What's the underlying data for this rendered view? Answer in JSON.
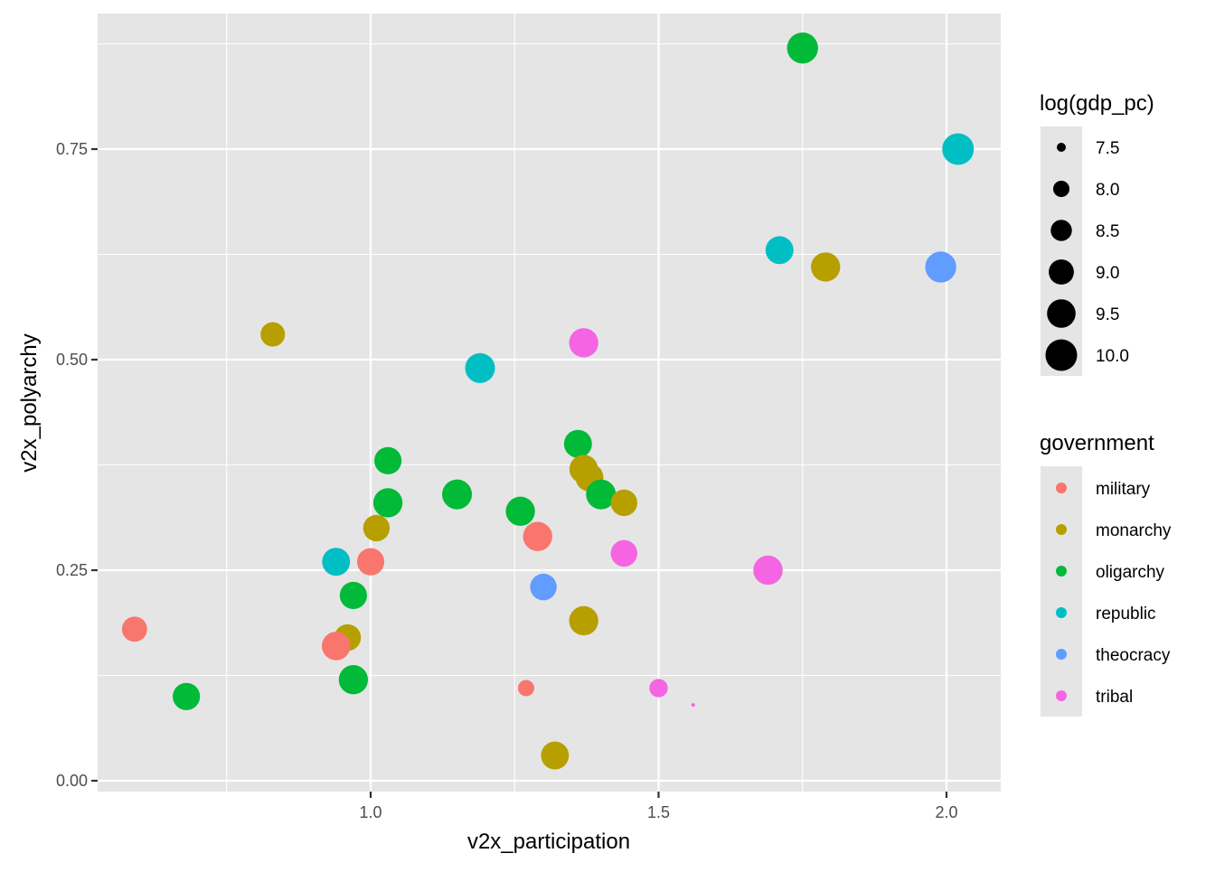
{
  "chart_data": {
    "type": "scatter",
    "title": "",
    "xlabel": "v2x_participation",
    "ylabel": "v2x_polyarchy",
    "xlim": [
      0.5,
      2.1
    ],
    "ylim": [
      -0.02,
      0.91
    ],
    "x_ticks": [
      1.0,
      1.5,
      2.0
    ],
    "x_tick_labels": [
      "1.0",
      "1.5",
      "2.0"
    ],
    "x_minor_ticks": [
      0.75,
      1.25,
      1.75
    ],
    "y_ticks": [
      0.0,
      0.25,
      0.5,
      0.75
    ],
    "y_tick_labels": [
      "0.00",
      "0.25",
      "0.50",
      "0.75"
    ],
    "y_minor_ticks": [
      0.125,
      0.375,
      0.625,
      0.875
    ],
    "grid": true,
    "panel_background": "#e5e5e5",
    "legend_position": "right",
    "size_legend": {
      "title": "log(gdp_pc)",
      "entries": [
        {
          "label": "7.5",
          "value": 7.5
        },
        {
          "label": "8.0",
          "value": 8.0
        },
        {
          "label": "8.5",
          "value": 8.5
        },
        {
          "label": "9.0",
          "value": 9.0
        },
        {
          "label": "9.5",
          "value": 9.5
        },
        {
          "label": "10.0",
          "value": 10.0
        }
      ]
    },
    "color_legend": {
      "title": "government",
      "entries": [
        {
          "label": "military",
          "color": "#F8766D"
        },
        {
          "label": "monarchy",
          "color": "#B79F00"
        },
        {
          "label": "oligarchy",
          "color": "#00BA38"
        },
        {
          "label": "republic",
          "color": "#00BFC4"
        },
        {
          "label": "theocracy",
          "color": "#619CFF"
        },
        {
          "label": "tribal",
          "color": "#F564E3"
        }
      ]
    },
    "colors": {
      "military": "#F8766D",
      "monarchy": "#B79F00",
      "oligarchy": "#00BA38",
      "republic": "#00BFC4",
      "theocracy": "#619CFF",
      "tribal": "#F564E3"
    },
    "points": [
      {
        "government": "military",
        "x": 0.59,
        "y": 0.18,
        "size": 9.0
      },
      {
        "government": "oligarchy",
        "x": 0.68,
        "y": 0.1,
        "size": 9.3
      },
      {
        "government": "monarchy",
        "x": 0.83,
        "y": 0.53,
        "size": 8.9
      },
      {
        "government": "republic",
        "x": 0.94,
        "y": 0.26,
        "size": 9.4
      },
      {
        "government": "monarchy",
        "x": 0.96,
        "y": 0.17,
        "size": 9.2
      },
      {
        "government": "military",
        "x": 0.94,
        "y": 0.16,
        "size": 9.5
      },
      {
        "government": "oligarchy",
        "x": 0.97,
        "y": 0.22,
        "size": 9.3
      },
      {
        "government": "oligarchy",
        "x": 0.97,
        "y": 0.12,
        "size": 9.6
      },
      {
        "government": "military",
        "x": 1.0,
        "y": 0.26,
        "size": 9.3
      },
      {
        "government": "monarchy",
        "x": 1.01,
        "y": 0.3,
        "size": 9.2
      },
      {
        "government": "oligarchy",
        "x": 1.03,
        "y": 0.38,
        "size": 9.3
      },
      {
        "government": "oligarchy",
        "x": 1.03,
        "y": 0.33,
        "size": 9.6
      },
      {
        "government": "oligarchy",
        "x": 1.15,
        "y": 0.34,
        "size": 9.7
      },
      {
        "government": "republic",
        "x": 1.19,
        "y": 0.49,
        "size": 9.7
      },
      {
        "government": "oligarchy",
        "x": 1.26,
        "y": 0.32,
        "size": 9.6
      },
      {
        "government": "military",
        "x": 1.27,
        "y": 0.11,
        "size": 8.0
      },
      {
        "government": "military",
        "x": 1.29,
        "y": 0.29,
        "size": 9.6
      },
      {
        "government": "theocracy",
        "x": 1.3,
        "y": 0.23,
        "size": 9.2
      },
      {
        "government": "monarchy",
        "x": 1.32,
        "y": 0.03,
        "size": 9.4
      },
      {
        "government": "oligarchy",
        "x": 1.36,
        "y": 0.4,
        "size": 9.4
      },
      {
        "government": "monarchy",
        "x": 1.37,
        "y": 0.37,
        "size": 9.5
      },
      {
        "government": "monarchy",
        "x": 1.38,
        "y": 0.36,
        "size": 9.4
      },
      {
        "government": "oligarchy",
        "x": 1.4,
        "y": 0.34,
        "size": 9.7
      },
      {
        "government": "monarchy",
        "x": 1.37,
        "y": 0.19,
        "size": 9.6
      },
      {
        "government": "tribal",
        "x": 1.37,
        "y": 0.52,
        "size": 9.6
      },
      {
        "government": "monarchy",
        "x": 1.44,
        "y": 0.33,
        "size": 9.2
      },
      {
        "government": "tribal",
        "x": 1.44,
        "y": 0.27,
        "size": 9.2
      },
      {
        "government": "tribal",
        "x": 1.5,
        "y": 0.11,
        "size": 8.2
      },
      {
        "government": "tribal",
        "x": 1.56,
        "y": 0.09,
        "size": 7.3
      },
      {
        "government": "monarchy",
        "x": 1.69,
        "y": 0.25,
        "size": 9.6
      },
      {
        "government": "tribal",
        "x": 1.69,
        "y": 0.25,
        "size": 9.6
      },
      {
        "government": "republic",
        "x": 1.71,
        "y": 0.63,
        "size": 9.4
      },
      {
        "government": "oligarchy",
        "x": 1.75,
        "y": 0.87,
        "size": 9.9
      },
      {
        "government": "monarchy",
        "x": 1.79,
        "y": 0.61,
        "size": 9.6
      },
      {
        "government": "theocracy",
        "x": 1.99,
        "y": 0.61,
        "size": 9.9
      },
      {
        "government": "republic",
        "x": 2.02,
        "y": 0.75,
        "size": 10.0
      }
    ]
  }
}
